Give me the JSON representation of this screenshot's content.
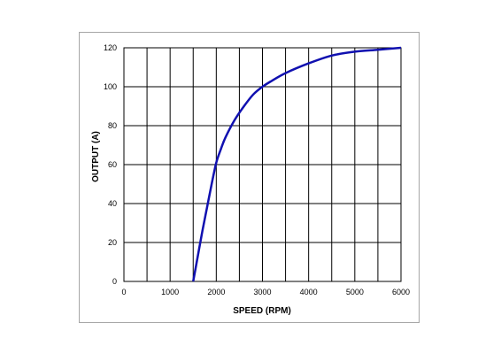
{
  "chart_data": {
    "type": "line",
    "xlabel": "SPEED (RPM)",
    "ylabel": "OUTPUT (A)",
    "xlim": [
      0,
      6000
    ],
    "ylim": [
      0,
      120
    ],
    "x_ticks": [
      "0",
      "1000",
      "2000",
      "3000",
      "4000",
      "5000",
      "6000"
    ],
    "y_ticks": [
      "0",
      "20",
      "40",
      "60",
      "80",
      "100",
      "120"
    ],
    "x_grid_step": 500,
    "y_grid_step": 20,
    "grid": true,
    "legend": "none",
    "series": [
      {
        "color": "#1010b0",
        "x": [
          1500,
          1600,
          1700,
          1800,
          1900,
          2000,
          2100,
          2200,
          2400,
          2600,
          2800,
          3000,
          3200,
          3500,
          4000,
          4500,
          5000,
          5500,
          6000
        ],
        "y": [
          0,
          13,
          26,
          38,
          50,
          61,
          68,
          74,
          83,
          90,
          96,
          100,
          103,
          107,
          112,
          116,
          118,
          119,
          120
        ]
      }
    ]
  }
}
